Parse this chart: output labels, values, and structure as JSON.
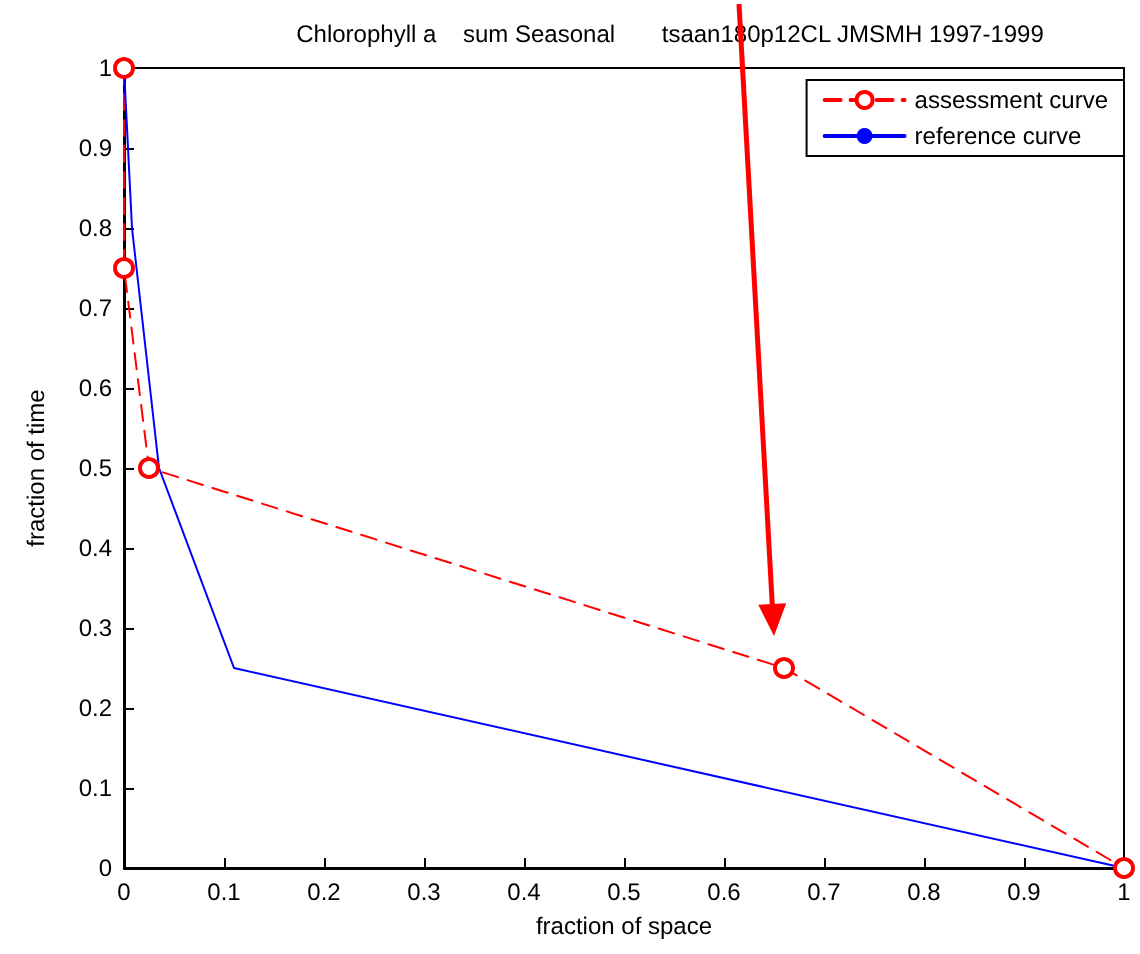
{
  "chart_data": {
    "type": "line",
    "title": "Chlorophyll a    sum Seasonal       tsaan180p12CL JMSMH 1997-1999",
    "xlabel": "fraction of space",
    "ylabel": "fraction of time",
    "xlim": [
      0,
      1
    ],
    "ylim": [
      0,
      1
    ],
    "xticks": [
      0,
      0.1,
      0.2,
      0.3,
      0.4,
      0.5,
      0.6,
      0.7,
      0.8,
      0.9,
      1
    ],
    "yticks": [
      0,
      0.1,
      0.2,
      0.3,
      0.4,
      0.5,
      0.6,
      0.7,
      0.8,
      0.9,
      1
    ],
    "grid": false,
    "legend": "top right",
    "series": [
      {
        "name": "assessment curve",
        "color": "#ff0000",
        "line_style": "dashed",
        "marker": "circle",
        "x": [
          0,
          0,
          0.025,
          0.66,
          1
        ],
        "values": [
          1,
          0.75,
          0.5,
          0.25,
          0
        ]
      },
      {
        "name": "reference curve",
        "color": "#0000ff",
        "line_style": "solid",
        "marker": "none",
        "x": [
          0,
          0.008,
          0.035,
          0.11,
          1
        ],
        "values": [
          1,
          0.8,
          0.5,
          0.25,
          0
        ]
      }
    ]
  }
}
